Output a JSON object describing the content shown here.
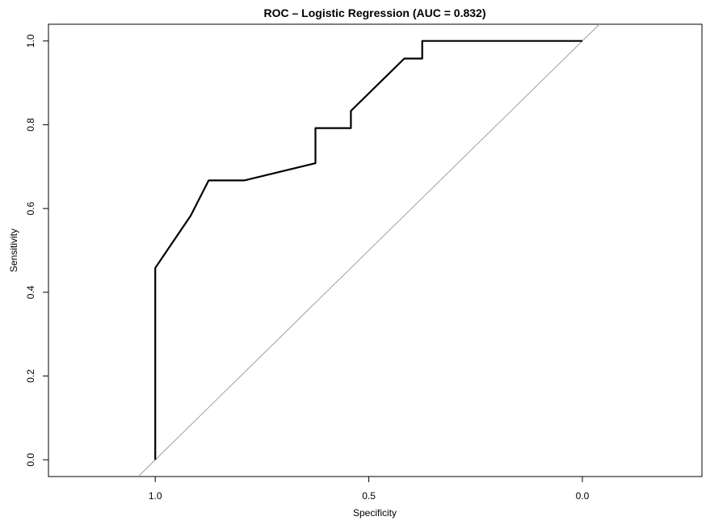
{
  "chart_data": {
    "type": "line",
    "title": "ROC – Logistic Regression (AUC = 0.832)",
    "xlabel": "Specificity",
    "ylabel": "Sensitivity",
    "xlim": [
      1.25,
      -0.28
    ],
    "ylim": [
      -0.04,
      1.04
    ],
    "x_ticks": [
      1.0,
      0.5,
      0.0
    ],
    "x_tick_labels": [
      "1.0",
      "0.5",
      "0.0"
    ],
    "y_ticks": [
      0.0,
      0.2,
      0.4,
      0.6,
      0.8,
      1.0
    ],
    "y_tick_labels": [
      "0.0",
      "0.2",
      "0.4",
      "0.6",
      "0.8",
      "1.0"
    ],
    "grid": false,
    "reference_line": {
      "x": [
        1.04,
        -0.04
      ],
      "y": [
        -0.04,
        1.04
      ],
      "color": "#a0a0a0"
    },
    "series": [
      {
        "color": "#000000",
        "x": [
          1.0,
          1.0,
          0.917,
          0.875,
          0.792,
          0.625,
          0.625,
          0.542,
          0.542,
          0.417,
          0.375,
          0.375,
          0.0
        ],
        "y": [
          0.0,
          0.458,
          0.583,
          0.667,
          0.667,
          0.708,
          0.792,
          0.792,
          0.833,
          0.958,
          0.958,
          1.0,
          1.0
        ]
      }
    ]
  }
}
